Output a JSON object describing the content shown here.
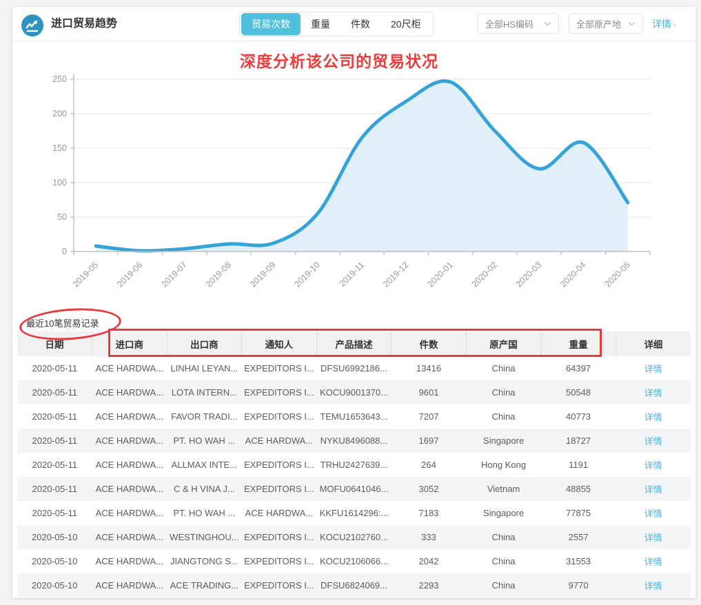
{
  "header": {
    "title": "进口贸易趋势",
    "tabs": [
      {
        "label": "贸易次数",
        "active": true
      },
      {
        "label": "重量",
        "active": false
      },
      {
        "label": "件数",
        "active": false
      },
      {
        "label": "20尺柜",
        "active": false
      }
    ],
    "hs_filter_value": "全部HS编码",
    "origin_filter_value": "全部原产地",
    "detail_link_label": "详情",
    "detail_link_arrow": "›"
  },
  "annotations": {
    "chart_note": "深度分析该公司的贸易状况",
    "annotation_color": "#ee3b3b"
  },
  "chart_data": {
    "type": "area",
    "title": "",
    "xlabel": "",
    "ylabel": "",
    "x": [
      "2019-05",
      "2019-06",
      "2019-07",
      "2019-08",
      "2019-09",
      "2019-10",
      "2019-11",
      "2019-12",
      "2020-01",
      "2020-02",
      "2020-03",
      "2020-04",
      "2020-05"
    ],
    "series": [
      {
        "name": "贸易次数",
        "values": [
          8,
          1,
          4,
          11,
          12,
          55,
          165,
          218,
          246,
          175,
          120,
          158,
          71
        ]
      }
    ],
    "ylim": [
      0,
      250
    ],
    "yticks": [
      0,
      50,
      100,
      150,
      200,
      250
    ],
    "grid": true,
    "legend_position": "none",
    "line_color": "#35a3d8",
    "fill_color": "#e1eff8",
    "axis_color": "#c0c0c0",
    "grid_color": "#e6e6e6",
    "tick_label_color": "#999999"
  },
  "table": {
    "section_label": "最近10笔贸易记录",
    "columns": [
      "日期",
      "进口商",
      "出口商",
      "通知人",
      "产品描述",
      "件数",
      "原产国",
      "重量",
      "详细"
    ],
    "detail_label": "详情",
    "rows": [
      [
        "2020-05-11",
        "ACE HARDWA...",
        "LINHAI LEYAN...",
        "EXPEDITORS I...",
        "DFSU6992186...",
        "13416",
        "China",
        "64397"
      ],
      [
        "2020-05-11",
        "ACE HARDWA...",
        "LOTA INTERN...",
        "EXPEDITORS I...",
        "KOCU9001370...",
        "9601",
        "China",
        "50548"
      ],
      [
        "2020-05-11",
        "ACE HARDWA...",
        "FAVOR TRADI...",
        "EXPEDITORS I...",
        "TEMU1653643...",
        "7207",
        "China",
        "40773"
      ],
      [
        "2020-05-11",
        "ACE HARDWA...",
        "PT. HO WAH ...",
        "ACE HARDWA...",
        "NYKU8496088...",
        "1697",
        "Singapore",
        "18727"
      ],
      [
        "2020-05-11",
        "ACE HARDWA...",
        "ALLMAX INTE...",
        "EXPEDITORS I...",
        "TRHU2427639...",
        "264",
        "Hong Kong",
        "1191"
      ],
      [
        "2020-05-11",
        "ACE HARDWA...",
        "C & H VINA J...",
        "EXPEDITORS I...",
        "MOFU0641046...",
        "3052",
        "Vietnam",
        "48855"
      ],
      [
        "2020-05-11",
        "ACE HARDWA...",
        "PT. HO WAH ...",
        "ACE HARDWA...",
        "KKFU1614296:...",
        "7183",
        "Singapore",
        "77875"
      ],
      [
        "2020-05-10",
        "ACE HARDWA...",
        "WESTINGHOU...",
        "EXPEDITORS I...",
        "KOCU2102760...",
        "333",
        "China",
        "2557"
      ],
      [
        "2020-05-10",
        "ACE HARDWA...",
        "JIANGTONG S...",
        "EXPEDITORS I...",
        "KOCU2106066...",
        "2042",
        "China",
        "31553"
      ],
      [
        "2020-05-10",
        "ACE HARDWA...",
        "ACE TRADING...",
        "EXPEDITORS I...",
        "DFSU6824069...",
        "2293",
        "China",
        "9770"
      ]
    ]
  },
  "colors": {
    "accent_blue": "#2e93c0",
    "tab_active": "#4fc0dd",
    "link_blue": "#4ab5d8",
    "annotation_red": "#e53b3c"
  }
}
